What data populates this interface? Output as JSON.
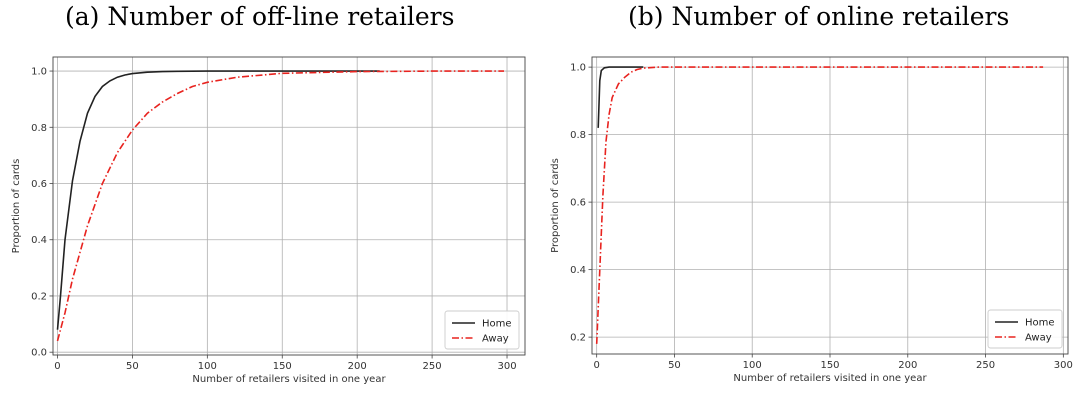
{
  "chart_data": [
    {
      "type": "line",
      "title": "(a) Number of off-line retailers",
      "xlabel": "Number of retailers visited in one year",
      "ylabel": "Proportion of cards",
      "xlim": [
        -3,
        312
      ],
      "ylim": [
        -0.01,
        1.05
      ],
      "xticks": [
        0,
        50,
        100,
        150,
        200,
        250,
        300
      ],
      "yticks": [
        0.0,
        0.2,
        0.4,
        0.6,
        0.8,
        1.0
      ],
      "xtick_labels": [
        "0",
        "50",
        "100",
        "150",
        "200",
        "250",
        "300"
      ],
      "ytick_labels": [
        "0.0",
        "0.2",
        "0.4",
        "0.6",
        "0.8",
        "1.0"
      ],
      "grid": true,
      "legend": "bottom-right",
      "series": [
        {
          "name": "Home",
          "color": "#222222",
          "style": "solid",
          "x": [
            0,
            2,
            5,
            10,
            15,
            20,
            25,
            30,
            35,
            40,
            45,
            50,
            60,
            70,
            80,
            100,
            150,
            215
          ],
          "y": [
            0.08,
            0.2,
            0.4,
            0.61,
            0.75,
            0.85,
            0.91,
            0.945,
            0.965,
            0.978,
            0.986,
            0.991,
            0.996,
            0.998,
            0.999,
            1.0,
            1.0,
            1.0
          ]
        },
        {
          "name": "Away",
          "color": "#e8231f",
          "style": "dashdot",
          "x": [
            0,
            5,
            10,
            20,
            30,
            40,
            50,
            60,
            70,
            80,
            90,
            100,
            120,
            150,
            200,
            250,
            298
          ],
          "y": [
            0.04,
            0.14,
            0.26,
            0.45,
            0.6,
            0.71,
            0.79,
            0.85,
            0.89,
            0.92,
            0.945,
            0.96,
            0.978,
            0.992,
            0.998,
            1.0,
            1.0
          ]
        }
      ]
    },
    {
      "type": "line",
      "title": "(b)  Number of online retailers",
      "xlabel": "Number of retailers visited in one year",
      "ylabel": "Proportion of cards",
      "xlim": [
        -3,
        303
      ],
      "ylim": [
        0.15,
        1.03
      ],
      "xticks": [
        0,
        50,
        100,
        150,
        200,
        250,
        300
      ],
      "yticks": [
        0.2,
        0.4,
        0.6,
        0.8,
        1.0
      ],
      "xtick_labels": [
        "0",
        "50",
        "100",
        "150",
        "200",
        "250",
        "300"
      ],
      "ytick_labels": [
        "0.2",
        "0.4",
        "0.6",
        "0.8",
        "1.0"
      ],
      "grid": true,
      "legend": "bottom-right",
      "series": [
        {
          "name": "Home",
          "color": "#222222",
          "style": "solid",
          "x": [
            1,
            2,
            3,
            5,
            8,
            12,
            20,
            30
          ],
          "y": [
            0.82,
            0.96,
            0.99,
            0.998,
            1.0,
            1.0,
            1.0,
            1.0
          ]
        },
        {
          "name": "Away",
          "color": "#e8231f",
          "style": "dashdot",
          "x": [
            0,
            2,
            4,
            6,
            8,
            10,
            14,
            18,
            22,
            26,
            30,
            40,
            60,
            100,
            200,
            287
          ],
          "y": [
            0.18,
            0.4,
            0.62,
            0.78,
            0.86,
            0.91,
            0.95,
            0.97,
            0.985,
            0.993,
            0.997,
            1.0,
            1.0,
            1.0,
            1.0,
            1.0
          ]
        }
      ]
    }
  ]
}
